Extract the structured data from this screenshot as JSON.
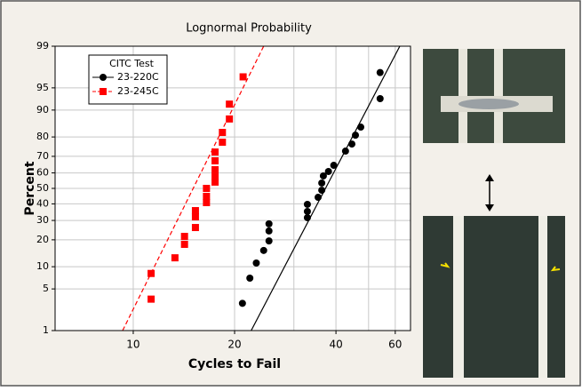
{
  "chart_data": {
    "type": "probability",
    "title": "Lognormal Probability",
    "x_label": "Cycles to Fail",
    "y_label": "Percent",
    "legend_title": "CITC Test",
    "xscale": "log",
    "yscale": "normal",
    "grid": true,
    "legend_position": "upper left",
    "xlim": [
      5.86,
      66.6
    ],
    "xticks": [
      10,
      20,
      40,
      60
    ],
    "xminor": [
      30,
      50
    ],
    "ylim": [
      1,
      99
    ],
    "yticks": [
      1,
      5,
      10,
      20,
      30,
      40,
      50,
      60,
      70,
      80,
      90,
      95,
      99
    ],
    "series": [
      {
        "name": "23-220C",
        "color": "#000000",
        "marker": "circle",
        "dash": false,
        "x": [
          21.1,
          22.2,
          23.2,
          24.4,
          25.3,
          25.3,
          25.3,
          32.9,
          32.9,
          32.9,
          35.4,
          36.3,
          36.3,
          36.7,
          38.0,
          39.4,
          42.7,
          44.6,
          45.7,
          47.4,
          54.1,
          54.1
        ],
        "values": [
          3.0,
          7.1,
          11.1,
          15.5,
          19.5,
          24.3,
          28.1,
          31.6,
          35.3,
          39.7,
          44.2,
          48.8,
          53.5,
          58.1,
          60.9,
          64.7,
          72.9,
          76.6,
          80.8,
          84.2,
          92.9,
          97.1
        ],
        "fit": {
          "x": [
            22.4,
            61.9
          ],
          "values": [
            1,
            99
          ]
        }
      },
      {
        "name": "23-245C",
        "color": "#ff0000",
        "marker": "square",
        "dash": true,
        "x": [
          11.3,
          11.3,
          13.3,
          14.2,
          14.2,
          15.3,
          15.3,
          15.3,
          16.5,
          16.5,
          16.5,
          17.5,
          17.5,
          17.5,
          17.5,
          17.5,
          18.4,
          18.4,
          19.3,
          19.3,
          21.2
        ],
        "values": [
          3.5,
          8.2,
          12.8,
          18.0,
          21.6,
          26.1,
          32.1,
          35.8,
          40.8,
          44.8,
          50.0,
          54.1,
          57.5,
          62.0,
          67.4,
          72.4,
          77.5,
          82.0,
          87.2,
          91.6,
          96.6
        ],
        "fit": {
          "x": [
            9.3,
            24.4
          ],
          "values": [
            1,
            99
          ]
        }
      }
    ]
  }
}
